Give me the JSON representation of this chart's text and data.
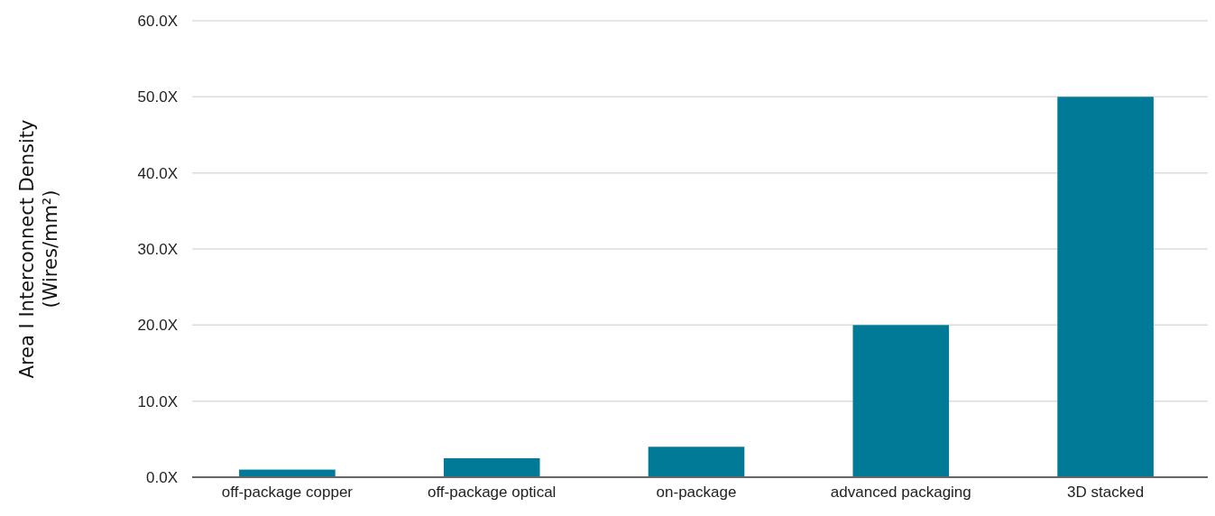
{
  "chart_data": {
    "type": "bar",
    "ylabel": "Area I Interconnect Density\n(Wires/mm²)",
    "categories": [
      "off-package copper",
      "off-package optical",
      "on-package",
      "advanced packaging",
      "3D stacked"
    ],
    "values": [
      1,
      2.5,
      4,
      20,
      50
    ],
    "color": "#007a96",
    "ylim": [
      0,
      60
    ],
    "yticks": [
      {
        "value": 0,
        "label": "0.0X"
      },
      {
        "value": 10,
        "label": "10.0X"
      },
      {
        "value": 20,
        "label": "20.0X"
      },
      {
        "value": 30,
        "label": "30.0X"
      },
      {
        "value": 40,
        "label": "40.0X"
      },
      {
        "value": 50,
        "label": "50.0X"
      },
      {
        "value": 60,
        "label": "60.0X"
      }
    ],
    "grid": "y"
  }
}
